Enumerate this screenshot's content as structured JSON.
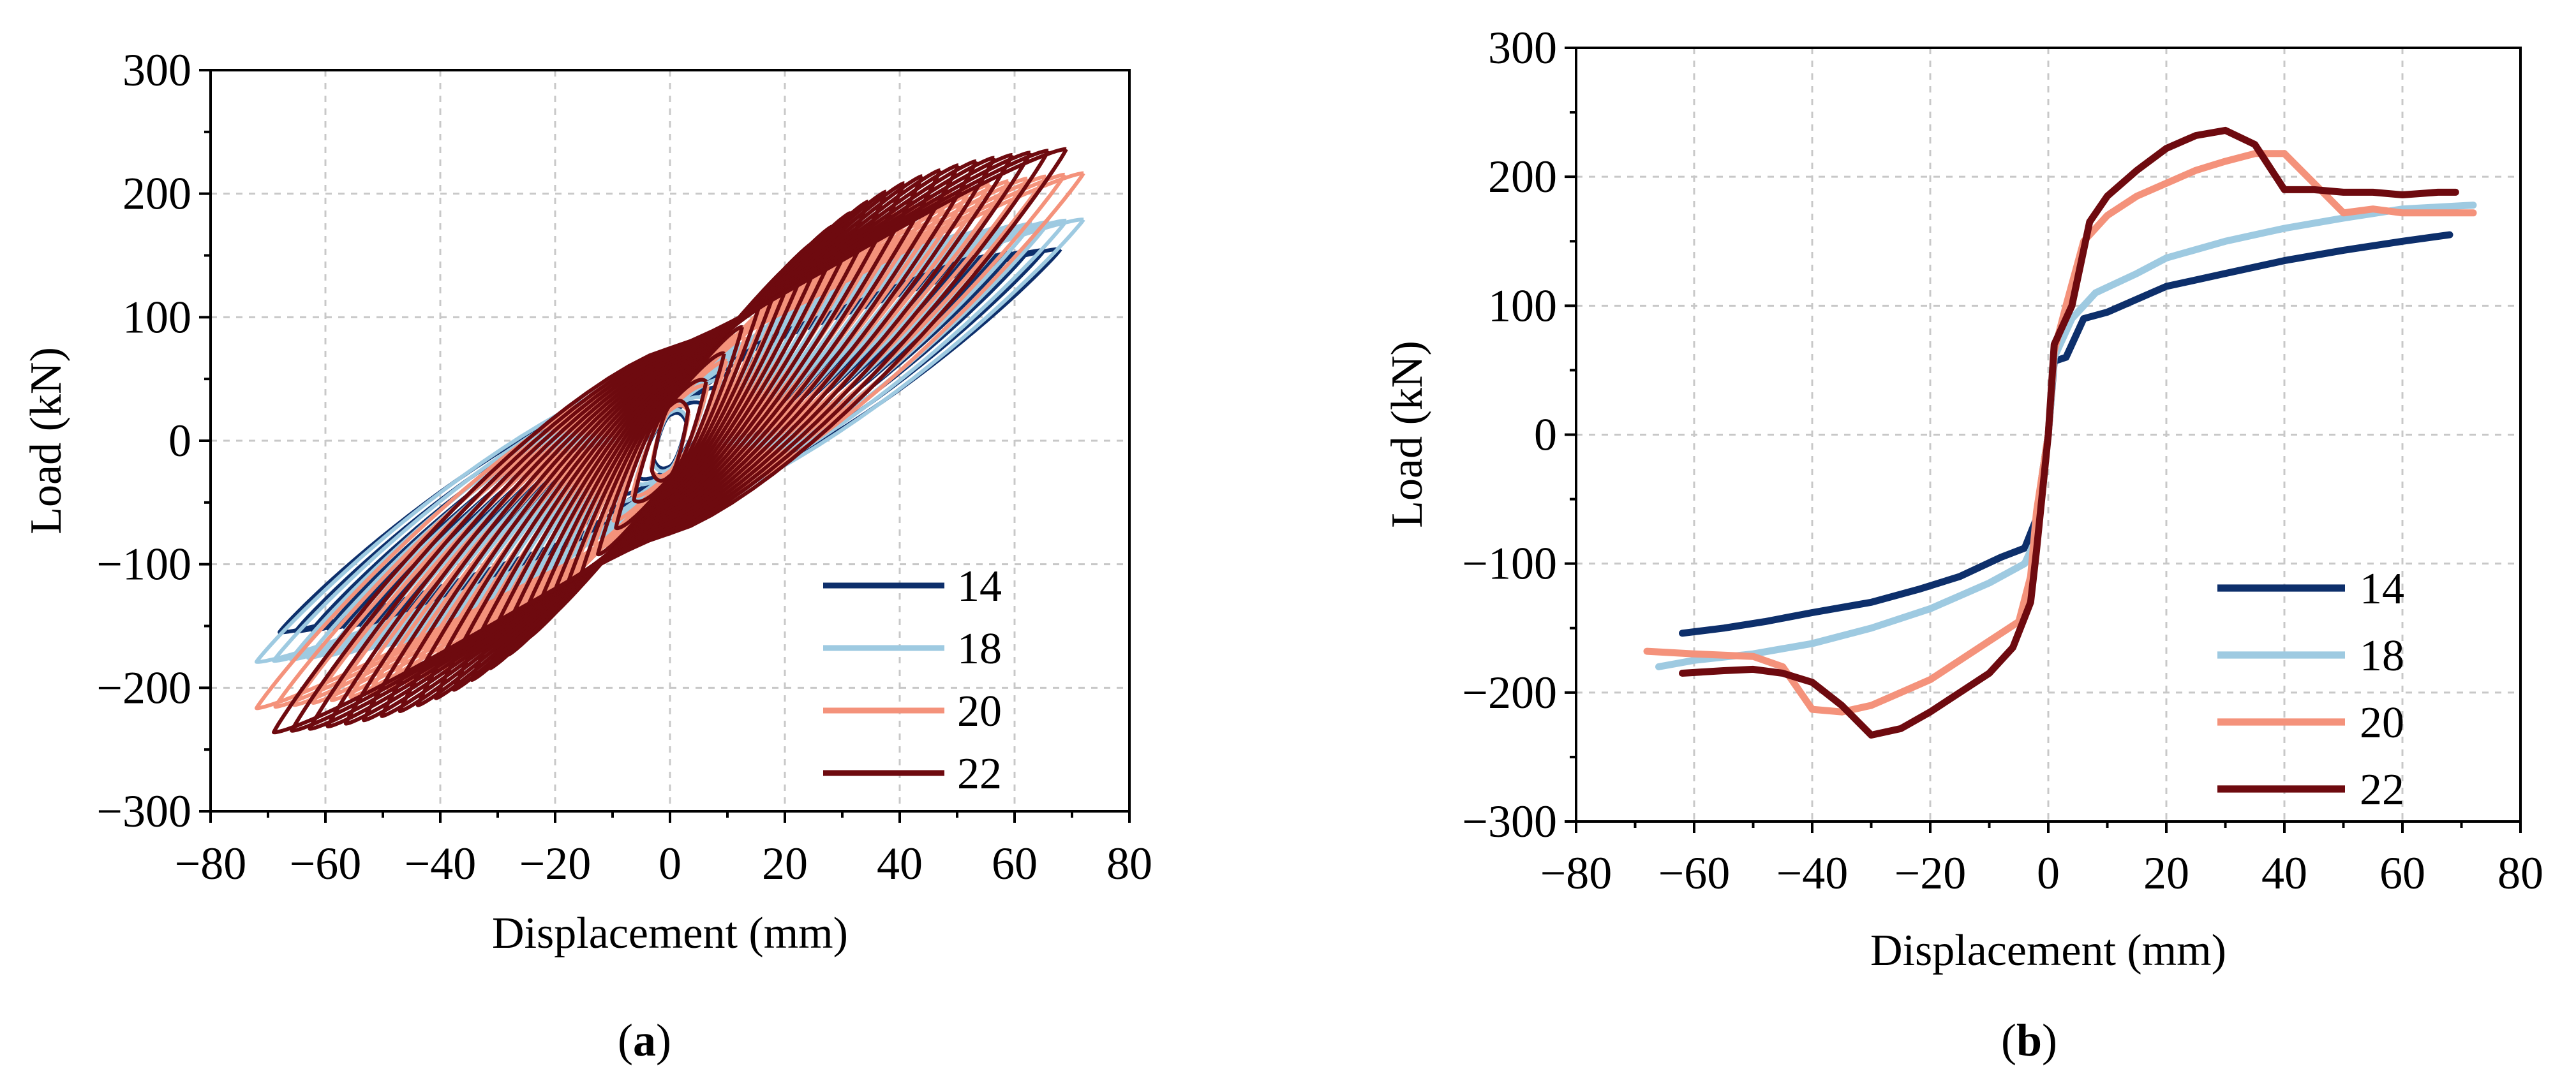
{
  "colors": {
    "s14": "#0d2f6b",
    "s18": "#9ecae1",
    "s20": "#f4927b",
    "s22": "#6e0a0f"
  },
  "chart_data": [
    {
      "type": "line",
      "caption_open": "(",
      "caption_letter": "a",
      "caption_close": ")",
      "xlabel": "Displacement (mm)",
      "ylabel": "Load (kN)",
      "xlim": [
        -80,
        80
      ],
      "ylim": [
        -300,
        300
      ],
      "xticks": [
        -80,
        -60,
        -40,
        -20,
        0,
        20,
        40,
        60,
        80
      ],
      "yticks": [
        -300,
        -200,
        -100,
        0,
        100,
        200,
        300
      ],
      "xtick_labels": [
        "−80",
        "−60",
        "−40",
        "−20",
        "0",
        "20",
        "40",
        "60",
        "80"
      ],
      "ytick_labels": [
        "−300",
        "−200",
        "−100",
        "0",
        "100",
        "200",
        "300"
      ],
      "legend_position": "bottom-right",
      "series": [
        {
          "name": "14",
          "max_disp": 68,
          "peak_pos": 155,
          "peak_neg": -155,
          "pinch": 55,
          "cycles": 24
        },
        {
          "name": "18",
          "max_disp": 72,
          "peak_pos": 178,
          "peak_neg": -180,
          "pinch": 60,
          "cycles": 24
        },
        {
          "name": "20",
          "max_disp": 72,
          "peak_pos": 218,
          "peak_neg": -215,
          "pinch": 65,
          "cycles": 22
        },
        {
          "name": "22",
          "max_disp": 69,
          "peak_pos": 236,
          "peak_neg": -236,
          "pinch": 75,
          "cycles": 22
        }
      ]
    },
    {
      "type": "line",
      "caption_open": "(",
      "caption_letter": "b",
      "caption_close": ")",
      "xlabel": "Displacement (mm)",
      "ylabel": "Load (kN)",
      "xlim": [
        -80,
        80
      ],
      "ylim": [
        -300,
        300
      ],
      "xticks": [
        -80,
        -60,
        -40,
        -20,
        0,
        20,
        40,
        60,
        80
      ],
      "yticks": [
        -300,
        -200,
        -100,
        0,
        100,
        200,
        300
      ],
      "xtick_labels": [
        "−80",
        "−60",
        "−40",
        "−20",
        "0",
        "20",
        "40",
        "60",
        "80"
      ],
      "ytick_labels": [
        "−300",
        "−200",
        "−100",
        "0",
        "100",
        "200",
        "300"
      ],
      "legend_position": "bottom-right",
      "series": [
        {
          "name": "14",
          "points": [
            [
              -62,
              -154
            ],
            [
              -55,
              -150
            ],
            [
              -48,
              -145
            ],
            [
              -40,
              -138
            ],
            [
              -30,
              -130
            ],
            [
              -22,
              -120
            ],
            [
              -15,
              -110
            ],
            [
              -8,
              -95
            ],
            [
              -4,
              -88
            ],
            [
              -2,
              -65
            ],
            [
              -1,
              -30
            ],
            [
              0,
              0
            ],
            [
              1,
              57
            ],
            [
              3,
              60
            ],
            [
              6,
              90
            ],
            [
              10,
              95
            ],
            [
              15,
              105
            ],
            [
              20,
              115
            ],
            [
              30,
              125
            ],
            [
              40,
              135
            ],
            [
              50,
              143
            ],
            [
              60,
              150
            ],
            [
              68,
              155
            ]
          ]
        },
        {
          "name": "18",
          "points": [
            [
              -66,
              -180
            ],
            [
              -60,
              -175
            ],
            [
              -50,
              -170
            ],
            [
              -40,
              -162
            ],
            [
              -30,
              -150
            ],
            [
              -20,
              -135
            ],
            [
              -10,
              -115
            ],
            [
              -4,
              -100
            ],
            [
              -2,
              -80
            ],
            [
              -1,
              -40
            ],
            [
              0,
              0
            ],
            [
              1,
              60
            ],
            [
              4,
              90
            ],
            [
              8,
              110
            ],
            [
              15,
              125
            ],
            [
              20,
              137
            ],
            [
              30,
              150
            ],
            [
              40,
              160
            ],
            [
              50,
              168
            ],
            [
              60,
              175
            ],
            [
              72,
              178
            ]
          ]
        },
        {
          "name": "20",
          "points": [
            [
              -68,
              -168
            ],
            [
              -60,
              -170
            ],
            [
              -50,
              -172
            ],
            [
              -45,
              -180
            ],
            [
              -40,
              -213
            ],
            [
              -35,
              -215
            ],
            [
              -30,
              -210
            ],
            [
              -25,
              -200
            ],
            [
              -20,
              -190
            ],
            [
              -15,
              -175
            ],
            [
              -10,
              -160
            ],
            [
              -5,
              -145
            ],
            [
              -3,
              -110
            ],
            [
              -2,
              -60
            ],
            [
              0,
              0
            ],
            [
              1,
              65
            ],
            [
              3,
              100
            ],
            [
              6,
              150
            ],
            [
              10,
              170
            ],
            [
              15,
              185
            ],
            [
              20,
              195
            ],
            [
              25,
              205
            ],
            [
              30,
              212
            ],
            [
              35,
              218
            ],
            [
              40,
              218
            ],
            [
              45,
              195
            ],
            [
              50,
              172
            ],
            [
              55,
              175
            ],
            [
              60,
              172
            ],
            [
              66,
              172
            ],
            [
              72,
              172
            ]
          ]
        },
        {
          "name": "22",
          "points": [
            [
              -62,
              -185
            ],
            [
              -55,
              -183
            ],
            [
              -50,
              -182
            ],
            [
              -45,
              -185
            ],
            [
              -40,
              -192
            ],
            [
              -35,
              -210
            ],
            [
              -30,
              -233
            ],
            [
              -25,
              -228
            ],
            [
              -20,
              -215
            ],
            [
              -15,
              -200
            ],
            [
              -10,
              -185
            ],
            [
              -6,
              -165
            ],
            [
              -3,
              -130
            ],
            [
              -2,
              -90
            ],
            [
              0,
              0
            ],
            [
              1,
              70
            ],
            [
              4,
              100
            ],
            [
              7,
              165
            ],
            [
              10,
              185
            ],
            [
              15,
              205
            ],
            [
              20,
              222
            ],
            [
              25,
              232
            ],
            [
              30,
              236
            ],
            [
              35,
              225
            ],
            [
              40,
              190
            ],
            [
              45,
              190
            ],
            [
              50,
              188
            ],
            [
              55,
              188
            ],
            [
              60,
              186
            ],
            [
              66,
              188
            ],
            [
              69,
              188
            ]
          ]
        }
      ]
    }
  ]
}
